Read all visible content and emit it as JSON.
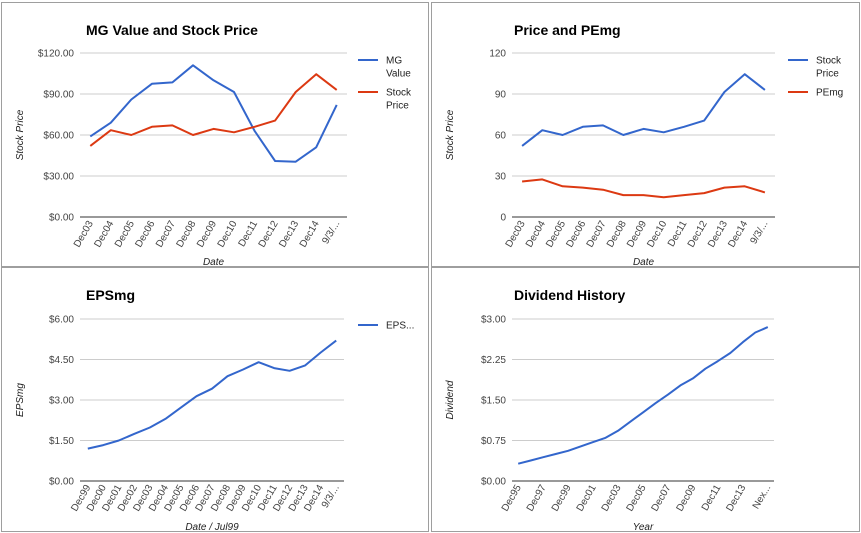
{
  "colors": {
    "blue": "#3366cc",
    "red": "#dc3912"
  },
  "chart_data": [
    {
      "type": "line",
      "title": "MG Value and Stock Price",
      "xlabel": "Date",
      "ylabel": "Stock Price",
      "categories": [
        "Dec03",
        "Dec04",
        "Dec05",
        "Dec06",
        "Dec07",
        "Dec08",
        "Dec09",
        "Dec10",
        "Dec11",
        "Dec12",
        "Dec13",
        "Dec14",
        "9/3/..."
      ],
      "ylim": [
        0,
        120
      ],
      "yticks": [
        "$0.00",
        "$30.00",
        "$60.00",
        "$90.00",
        "$120.00"
      ],
      "legend": "right",
      "series": [
        {
          "name": "MG Value",
          "color": "#3366cc",
          "values": [
            59,
            69,
            86,
            97.5,
            98.5,
            111,
            100,
            91.5,
            63,
            41,
            40.5,
            51,
            82
          ]
        },
        {
          "name": "Stock Price",
          "color": "#dc3912",
          "values": [
            52,
            63.5,
            60,
            66,
            67,
            60,
            64.5,
            62,
            66,
            70.5,
            91.5,
            104.5,
            93
          ]
        }
      ]
    },
    {
      "type": "line",
      "title": "Price and PEmg",
      "xlabel": "Date",
      "ylabel": "Stock Price",
      "categories": [
        "Dec03",
        "Dec04",
        "Dec05",
        "Dec06",
        "Dec07",
        "Dec08",
        "Dec09",
        "Dec10",
        "Dec11",
        "Dec12",
        "Dec13",
        "Dec14",
        "9/3/..."
      ],
      "ylim": [
        0,
        120
      ],
      "yticks": [
        "0",
        "30",
        "60",
        "90",
        "120"
      ],
      "legend": "right",
      "series": [
        {
          "name": "Stock Price",
          "color": "#3366cc",
          "values": [
            52,
            63.5,
            60,
            66,
            67,
            60,
            64.5,
            62,
            66,
            70.5,
            91.5,
            104.5,
            93
          ]
        },
        {
          "name": "PEmg",
          "color": "#dc3912",
          "values": [
            26,
            27.5,
            22.5,
            21.5,
            20,
            16,
            16,
            14.5,
            16,
            17.5,
            21.5,
            22.5,
            18
          ]
        }
      ]
    },
    {
      "type": "line",
      "title": "EPSmg",
      "xlabel": "Date / Jul99",
      "ylabel": "EPSmg",
      "categories": [
        "Dec99",
        "Dec00",
        "Dec01",
        "Dec02",
        "Dec03",
        "Dec04",
        "Dec05",
        "Dec06",
        "Dec07",
        "Dec08",
        "Dec09",
        "Dec10",
        "Dec11",
        "Dec12",
        "Dec13",
        "Dec14",
        "9/3/..."
      ],
      "ylim": [
        0,
        6
      ],
      "yticks": [
        "$0.00",
        "$1.50",
        "$3.00",
        "$4.50",
        "$6.00"
      ],
      "legend": "right",
      "series": [
        {
          "name": "EPS...",
          "color": "#3366cc",
          "values": [
            1.2,
            1.33,
            1.5,
            1.75,
            1.98,
            2.3,
            2.72,
            3.14,
            3.42,
            3.88,
            4.13,
            4.4,
            4.18,
            4.08,
            4.28,
            4.76,
            5.2
          ]
        }
      ]
    },
    {
      "type": "line",
      "title": "Dividend History",
      "xlabel": "Year",
      "ylabel": "Dividend",
      "categories": [
        "Dec95",
        "Dec96",
        "Dec97",
        "Dec98",
        "Dec99",
        "Dec00",
        "Dec01",
        "Dec02",
        "Dec03",
        "Dec04",
        "Dec05",
        "Dec06",
        "Dec07",
        "Dec08",
        "Dec09",
        "Dec10",
        "Dec11",
        "Dec12",
        "Dec13",
        "Dec14",
        "Nex..."
      ],
      "labeled_ticks": [
        "Dec95",
        "Dec97",
        "Dec99",
        "Dec01",
        "Dec03",
        "Dec05",
        "Dec07",
        "Dec09",
        "Dec11",
        "Dec13",
        "Nex..."
      ],
      "ylim": [
        0,
        3
      ],
      "yticks": [
        "$0.00",
        "$0.75",
        "$1.50",
        "$2.25",
        "$3.00"
      ],
      "legend": "none",
      "series": [
        {
          "name": "",
          "color": "#3366cc",
          "values": [
            0.32,
            0.38,
            0.44,
            0.5,
            0.56,
            0.64,
            0.72,
            0.8,
            0.93,
            1.1,
            1.27,
            1.44,
            1.6,
            1.77,
            1.9,
            2.08,
            2.22,
            2.37,
            2.57,
            2.75,
            2.85
          ]
        }
      ]
    }
  ]
}
